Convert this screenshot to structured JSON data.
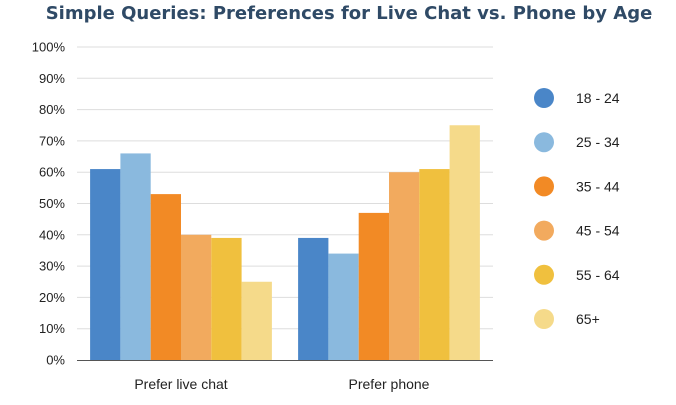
{
  "chart_data": {
    "type": "bar",
    "title": "Simple Queries: Preferences for Live Chat vs. Phone by Age",
    "categories": [
      "Prefer live chat",
      "Prefer phone"
    ],
    "series": [
      {
        "name": "18 - 24",
        "color": "#4a86c8",
        "values": [
          61,
          39
        ]
      },
      {
        "name": "25 - 34",
        "color": "#8ab9de",
        "values": [
          66,
          34
        ]
      },
      {
        "name": "35 - 44",
        "color": "#f28a25",
        "values": [
          53,
          47
        ]
      },
      {
        "name": "45 - 54",
        "color": "#f2aa5e",
        "values": [
          40,
          60
        ]
      },
      {
        "name": "55 - 64",
        "color": "#f0c03e",
        "values": [
          39,
          61
        ]
      },
      {
        "name": "65+",
        "color": "#f5da8a",
        "values": [
          25,
          75
        ]
      }
    ],
    "y_ticks": [
      "0%",
      "10%",
      "20%",
      "30%",
      "40%",
      "50%",
      "60%",
      "70%",
      "80%",
      "90%",
      "100%"
    ],
    "ylim": [
      0,
      100
    ],
    "grid": true,
    "legend": "right"
  }
}
